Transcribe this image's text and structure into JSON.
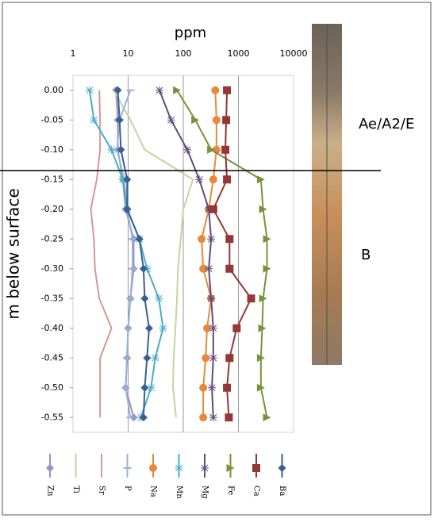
{
  "chart_data": {
    "type": "line",
    "xscale": "log",
    "x_label": "ppm",
    "y_label": "m below surface",
    "xlim": [
      1,
      10000
    ],
    "xticks": [
      1,
      10,
      100,
      1000,
      10000
    ],
    "ylim": [
      -0.575,
      0.025
    ],
    "yticks": [
      {
        "value": 0,
        "label": "0.00"
      },
      {
        "value": -0.05,
        "label": "-0.05"
      },
      {
        "value": -0.1,
        "label": "-0.10"
      },
      {
        "value": -0.15,
        "label": "-0.15"
      },
      {
        "value": -0.2,
        "label": "-0.20"
      },
      {
        "value": -0.25,
        "label": "-0.25"
      },
      {
        "value": -0.3,
        "label": "-0.30"
      },
      {
        "value": -0.35,
        "label": "-0.35"
      },
      {
        "value": -0.4,
        "label": "-0.40"
      },
      {
        "value": -0.45,
        "label": "-0.45"
      },
      {
        "value": -0.5,
        "label": "-0.50"
      },
      {
        "value": -0.55,
        "label": "-0.55"
      }
    ],
    "y": [
      0,
      -0.05,
      -0.1,
      -0.15,
      -0.2,
      -0.25,
      -0.3,
      -0.35,
      -0.4,
      -0.45,
      -0.5,
      -0.55
    ],
    "grid": true,
    "boundary": -0.135,
    "annotations": [
      "Ae/A2/E",
      "B"
    ],
    "series": [
      {
        "name": "Zn",
        "color": "#9e8fc4",
        "marker": "diamond",
        "values": [
          6,
          6.5,
          6.5,
          8,
          9,
          12.6,
          12.6,
          11,
          10,
          9.6,
          9,
          12.6
        ]
      },
      {
        "name": "Ti",
        "color": "#c3d69b",
        "marker": "none",
        "values": [
          5.5,
          11,
          20,
          150,
          100,
          90,
          80,
          77,
          72,
          67,
          65,
          74
        ]
      },
      {
        "name": "Sr",
        "color": "#d99694",
        "marker": "none",
        "values": [
          3,
          3.1,
          3.1,
          2.7,
          2.1,
          2.4,
          2.5,
          3,
          5,
          3.1,
          3.1,
          3.1
        ]
      },
      {
        "name": "P",
        "color": "#95b3d7",
        "marker": "dash",
        "values": [
          11,
          7,
          6.3,
          8.5,
          9.5,
          12,
          12,
          11,
          10,
          9.5,
          9,
          11
        ]
      },
      {
        "name": "Na",
        "color": "#e8893a",
        "marker": "circle",
        "values": [
          380,
          400,
          400,
          350,
          290,
          215,
          230,
          320,
          270,
          255,
          230,
          230
        ]
      },
      {
        "name": "Mn",
        "color": "#4bacc6",
        "marker": "star",
        "values": [
          2,
          2.4,
          5,
          8,
          9.6,
          16,
          22,
          36,
          43,
          31,
          26,
          17
        ]
      },
      {
        "name": "Mg",
        "color": "#604a7b",
        "marker": "star",
        "values": [
          37,
          60,
          118,
          195,
          290,
          320,
          290,
          320,
          350,
          350,
          330,
          350
        ]
      },
      {
        "name": "Fe",
        "color": "#77933c",
        "marker": "triangle",
        "values": [
          77,
          165,
          320,
          2560,
          2800,
          3300,
          3300,
          2800,
          2700,
          2560,
          2560,
          3300
        ]
      },
      {
        "name": "Ca",
        "color": "#953735",
        "marker": "square",
        "values": [
          620,
          600,
          580,
          620,
          350,
          690,
          690,
          1700,
          930,
          690,
          620,
          670
        ]
      },
      {
        "name": "Ba",
        "color": "#376092",
        "marker": "diamond",
        "values": [
          6.5,
          7,
          7.4,
          9.6,
          9.6,
          16,
          19,
          20,
          24,
          22,
          20,
          19
        ]
      }
    ]
  }
}
